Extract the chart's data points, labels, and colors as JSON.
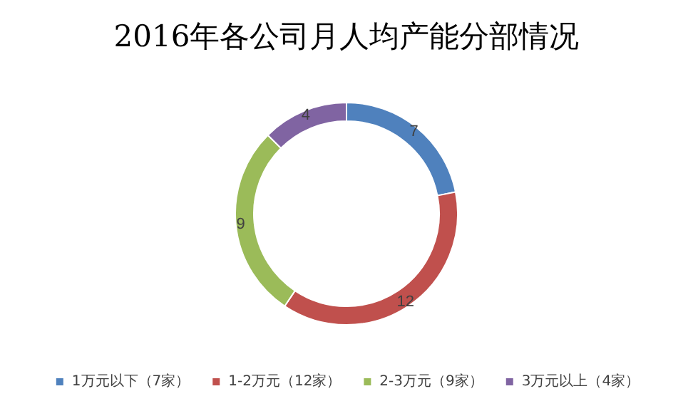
{
  "chart_data": {
    "type": "donut",
    "title": "2016年各公司月人均产能分部情况",
    "categories": [
      "1万元以下（7家）",
      "1-2万元（12家）",
      "2-3万元（9家）",
      "3万元以上（4家）"
    ],
    "values": [
      7,
      12,
      9,
      4
    ],
    "colors": [
      "#4f81bd",
      "#c0504d",
      "#9bbb59",
      "#8064a2"
    ],
    "data_labels": true,
    "legend": "bottom"
  }
}
